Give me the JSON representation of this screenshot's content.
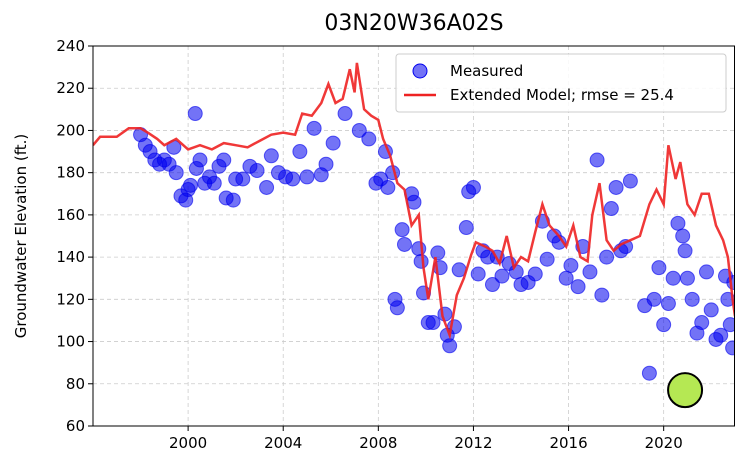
{
  "chart_data": {
    "type": "scatter_line",
    "title": "03N20W36A02S",
    "y_label": "Groundwater Elevation (ft.)",
    "xlim": [
      1996,
      2023
    ],
    "xticks": [
      2000,
      2004,
      2008,
      2012,
      2016,
      2020
    ],
    "ylim": [
      60,
      240
    ],
    "yticks": [
      60,
      80,
      100,
      120,
      140,
      160,
      180,
      200,
      220,
      240
    ],
    "grid": true,
    "legend": "upper right",
    "series": [
      {
        "name": "Measured",
        "type": "scatter",
        "color": "#0000ee",
        "x": [
          1998.0,
          1998.2,
          1998.4,
          1998.6,
          1998.8,
          1999.0,
          1999.2,
          1999.4,
          1999.5,
          1999.7,
          1999.9,
          2000.0,
          2000.1,
          2000.3,
          2000.35,
          2000.5,
          2000.7,
          2000.9,
          2001.1,
          2001.3,
          2001.5,
          2001.6,
          2001.9,
          2002.0,
          2002.3,
          2002.6,
          2002.9,
          2003.3,
          2003.5,
          2003.8,
          2004.1,
          2004.4,
          2004.7,
          2005.0,
          2005.3,
          2005.6,
          2005.8,
          2006.1,
          2006.6,
          2007.2,
          2007.6,
          2007.9,
          2008.1,
          2008.3,
          2008.4,
          2008.6,
          2008.7,
          2008.8,
          2009.0,
          2009.1,
          2009.4,
          2009.5,
          2009.7,
          2009.8,
          2009.9,
          2010.1,
          2010.3,
          2010.5,
          2010.6,
          2010.8,
          2010.9,
          2011.0,
          2011.2,
          2011.4,
          2011.7,
          2011.8,
          2012.0,
          2012.2,
          2012.4,
          2012.6,
          2012.8,
          2013.0,
          2013.2,
          2013.5,
          2013.8,
          2014.0,
          2014.3,
          2014.6,
          2014.9,
          2015.1,
          2015.4,
          2015.6,
          2015.9,
          2016.1,
          2016.4,
          2016.6,
          2016.9,
          2017.2,
          2017.4,
          2017.6,
          2017.8,
          2018.0,
          2018.2,
          2018.4,
          2018.6,
          2019.2,
          2019.4,
          2019.6,
          2019.8,
          2020.0,
          2020.2,
          2020.4,
          2020.6,
          2020.8,
          2020.9,
          2021.0,
          2021.2,
          2021.4,
          2021.6,
          2021.8,
          2022.0,
          2022.2,
          2022.4,
          2022.6,
          2022.7,
          2022.8,
          2022.9,
          2022.95
        ],
        "values": [
          198,
          193,
          190,
          186,
          184,
          186,
          184,
          192,
          180,
          169,
          167,
          172,
          174,
          208,
          182,
          186,
          175,
          178,
          175,
          183,
          186,
          168,
          167,
          177,
          177,
          183,
          181,
          173,
          188,
          180,
          178,
          177,
          190,
          178,
          201,
          179,
          184,
          194,
          208,
          200,
          196,
          175,
          177,
          190,
          173,
          180,
          120,
          116,
          153,
          146,
          170,
          166,
          144,
          138,
          123,
          109,
          109,
          142,
          135,
          113,
          103,
          98,
          107,
          134,
          154,
          171,
          173,
          132,
          143,
          140,
          127,
          140,
          131,
          137,
          133,
          127,
          128,
          132,
          157,
          139,
          150,
          147,
          130,
          136,
          126,
          145,
          133,
          186,
          122,
          140,
          163,
          173,
          143,
          145,
          176,
          117,
          85,
          120,
          135,
          108,
          118,
          130,
          156,
          150,
          143,
          130,
          120,
          104,
          109,
          133,
          115,
          101,
          103,
          131,
          120,
          108,
          97,
          128
        ]
      },
      {
        "name": "Extended Model; rmse = 25.4",
        "type": "line",
        "color": "#ee2222",
        "x": [
          1996,
          1996.3,
          1997,
          1997.5,
          1998,
          1998.3,
          1998.7,
          1999,
          1999.5,
          2000,
          2000.5,
          2001,
          2001.5,
          2002,
          2002.5,
          2003,
          2003.5,
          2004,
          2004.5,
          2004.8,
          2005.2,
          2005.6,
          2005.9,
          2006.2,
          2006.5,
          2006.8,
          2007.0,
          2007.1,
          2007.4,
          2007.7,
          2008.0,
          2008.2,
          2008.5,
          2008.8,
          2009.1,
          2009.4,
          2009.7,
          2009.9,
          2010.1,
          2010.4,
          2010.7,
          2011.0,
          2011.3,
          2011.6,
          2011.9,
          2012.1,
          2012.5,
          2012.8,
          2013.1,
          2013.4,
          2013.7,
          2014.0,
          2014.3,
          2014.6,
          2014.9,
          2015.2,
          2015.6,
          2015.9,
          2016.2,
          2016.5,
          2016.8,
          2017.0,
          2017.3,
          2017.6,
          2017.9,
          2018.2,
          2018.6,
          2019.0,
          2019.4,
          2019.7,
          2020.0,
          2020.2,
          2020.5,
          2020.7,
          2021.0,
          2021.3,
          2021.6,
          2021.9,
          2022.2,
          2022.5,
          2022.7,
          2022.9,
          2023.0
        ],
        "values": [
          193,
          197,
          197,
          201,
          201,
          199,
          196,
          193,
          196,
          191,
          193,
          191,
          194,
          193,
          192,
          195,
          198,
          199,
          198,
          208,
          207,
          213,
          222,
          213,
          215,
          229,
          218,
          232,
          210,
          207,
          205,
          196,
          188,
          175,
          172,
          155,
          160,
          135,
          120,
          140,
          112,
          103,
          122,
          130,
          141,
          147,
          145,
          143,
          137,
          150,
          135,
          140,
          138,
          152,
          165,
          155,
          150,
          145,
          155,
          140,
          138,
          160,
          175,
          148,
          143,
          146,
          148,
          150,
          165,
          172,
          165,
          193,
          177,
          185,
          165,
          160,
          170,
          170,
          155,
          148,
          140,
          120,
          112
        ]
      }
    ],
    "highlight_point": {
      "x": 2020.9,
      "y": 77,
      "color": "#b5e853"
    }
  }
}
